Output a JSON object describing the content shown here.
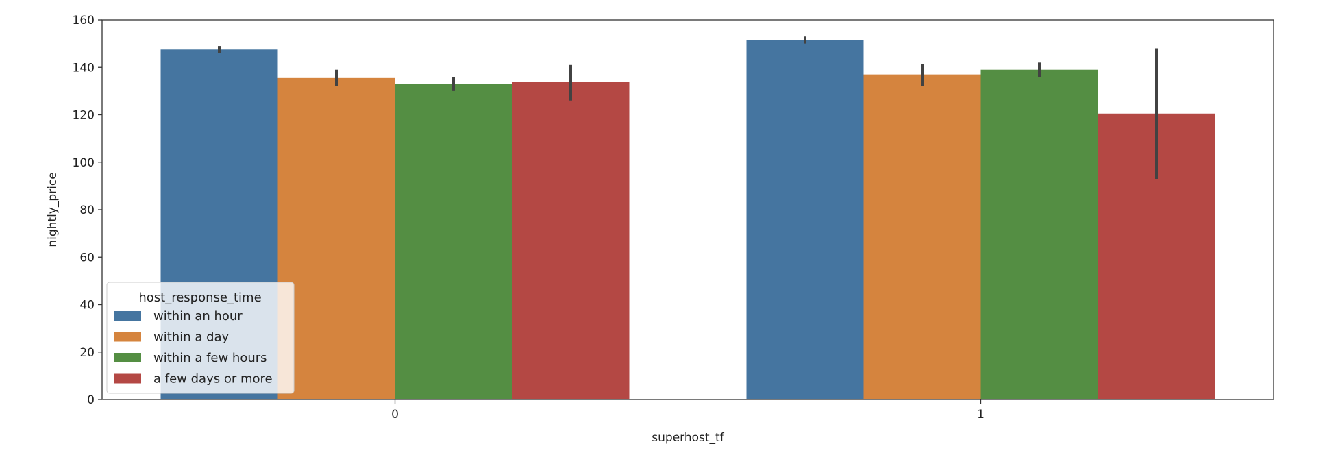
{
  "chart_data": {
    "type": "bar",
    "title": "",
    "xlabel": "superhost_tf",
    "ylabel": "nightly_price",
    "categories": [
      "0",
      "1"
    ],
    "ylim": [
      0,
      160
    ],
    "yticks": [
      0,
      20,
      40,
      60,
      80,
      100,
      120,
      140,
      160
    ],
    "grid": false,
    "legend": {
      "title": "host_response_time",
      "placement": "lower-left"
    },
    "series": [
      {
        "name": "within an hour",
        "color": "#4575a0",
        "values": [
          147.5,
          151.5
        ],
        "error": [
          [
            146,
            149
          ],
          [
            150,
            153
          ]
        ]
      },
      {
        "name": "within a day",
        "color": "#d5843e",
        "values": [
          135.5,
          137
        ],
        "error": [
          [
            132,
            139
          ],
          [
            132,
            141.5
          ]
        ]
      },
      {
        "name": "within a few hours",
        "color": "#548e43",
        "values": [
          133,
          139
        ],
        "error": [
          [
            130,
            136
          ],
          [
            136,
            142
          ]
        ]
      },
      {
        "name": "a few days or more",
        "color": "#b44844",
        "values": [
          134,
          120.5
        ],
        "error": [
          [
            126,
            141
          ],
          [
            93,
            148
          ]
        ]
      }
    ]
  }
}
